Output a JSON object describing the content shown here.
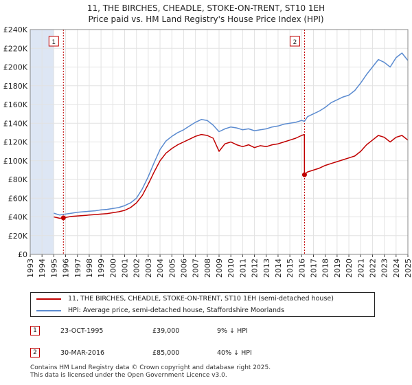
{
  "title_line1": "11, THE BIRCHES, CHEADLE, STOKE-ON-TRENT, ST10 1EH",
  "title_line2": "Price paid vs. HM Land Registry's House Price Index (HPI)",
  "colors": {
    "property": "#c00000",
    "hpi": "#5b8bd0",
    "shade": "#dde6f4",
    "marker": "#c00000"
  },
  "legend": {
    "property_label": "11, THE BIRCHES, CHEADLE, STOKE-ON-TRENT, ST10 1EH (semi-detached house)",
    "hpi_label": "HPI: Average price, semi-detached house, Staffordshire Moorlands"
  },
  "transactions": [
    {
      "num": "1",
      "date": "23-OCT-1995",
      "price": "£39,000",
      "hpi_diff": "9% ↓ HPI"
    },
    {
      "num": "2",
      "date": "30-MAR-2016",
      "price": "£85,000",
      "hpi_diff": "40% ↓ HPI"
    }
  ],
  "footer_line1": "Contains HM Land Registry data © Crown copyright and database right 2025.",
  "footer_line2": "This data is licensed under the Open Government Licence v3.0.",
  "chart_data": {
    "type": "line",
    "title": "11, THE BIRCHES, CHEADLE, STOKE-ON-TRENT, ST10 1EH — Price paid vs. HM Land Registry's House Price Index (HPI)",
    "xlim": [
      1993,
      2025
    ],
    "ylim": [
      0,
      240000
    ],
    "y_ticks": [
      0,
      20000,
      40000,
      60000,
      80000,
      100000,
      120000,
      140000,
      160000,
      180000,
      200000,
      220000,
      240000
    ],
    "y_tick_labels": [
      "£0",
      "£20K",
      "£40K",
      "£60K",
      "£80K",
      "£100K",
      "£120K",
      "£140K",
      "£160K",
      "£180K",
      "£200K",
      "£220K",
      "£240K"
    ],
    "x_ticks": [
      1993,
      1994,
      1995,
      1996,
      1997,
      1998,
      1999,
      2000,
      2001,
      2002,
      2003,
      2004,
      2005,
      2006,
      2007,
      2008,
      2009,
      2010,
      2011,
      2012,
      2013,
      2014,
      2015,
      2016,
      2017,
      2018,
      2019,
      2020,
      2021,
      2022,
      2023,
      2024,
      2025
    ],
    "shaded_regions": [
      [
        1993,
        1995.0
      ],
      [
        2025.0,
        2025.0
      ]
    ],
    "vlines": [
      {
        "x": 1995.81,
        "label": "1"
      },
      {
        "x": 2016.24,
        "label": "2"
      }
    ],
    "series": [
      {
        "name": "HPI: Average price, semi-detached house, Staffordshire Moorlands",
        "x": [
          1995.0,
          1995.5,
          1995.81,
          1996.0,
          1996.5,
          1997.0,
          1997.5,
          1998.0,
          1998.5,
          1999.0,
          1999.5,
          2000.0,
          2000.5,
          2001.0,
          2001.5,
          2002.0,
          2002.5,
          2003.0,
          2003.5,
          2004.0,
          2004.5,
          2005.0,
          2005.5,
          2006.0,
          2006.5,
          2007.0,
          2007.5,
          2008.0,
          2008.5,
          2009.0,
          2009.5,
          2010.0,
          2010.5,
          2011.0,
          2011.5,
          2012.0,
          2012.5,
          2013.0,
          2013.5,
          2014.0,
          2014.5,
          2015.0,
          2015.5,
          2016.0,
          2016.24,
          2016.5,
          2017.0,
          2017.5,
          2018.0,
          2018.5,
          2019.0,
          2019.5,
          2020.0,
          2020.5,
          2021.0,
          2021.5,
          2022.0,
          2022.5,
          2023.0,
          2023.5,
          2024.0,
          2024.5,
          2025.0
        ],
        "values": [
          44000,
          42000,
          42800,
          43000,
          44000,
          45000,
          45500,
          46000,
          46500,
          47500,
          48000,
          49000,
          50000,
          52000,
          55000,
          60000,
          70000,
          83000,
          98000,
          112000,
          121000,
          126000,
          130000,
          133000,
          137000,
          141000,
          144000,
          143000,
          138000,
          131000,
          134000,
          136000,
          135000,
          133000,
          134000,
          132000,
          133000,
          134000,
          136000,
          137000,
          139000,
          140000,
          141000,
          143000,
          142000,
          147000,
          150000,
          153000,
          157000,
          162000,
          165000,
          168000,
          170000,
          175000,
          183000,
          192000,
          200000,
          208000,
          205000,
          200000,
          210000,
          215000,
          207000
        ]
      },
      {
        "name": "11, THE BIRCHES, CHEADLE, STOKE-ON-TRENT, ST10 1EH (semi-detached house)",
        "x": [
          1995.0,
          1995.5,
          1995.81,
          1996.0,
          1996.5,
          1997.0,
          1997.5,
          1998.0,
          1998.5,
          1999.0,
          1999.5,
          2000.0,
          2000.5,
          2001.0,
          2001.5,
          2002.0,
          2002.5,
          2003.0,
          2003.5,
          2004.0,
          2004.5,
          2005.0,
          2005.5,
          2006.0,
          2006.5,
          2007.0,
          2007.5,
          2008.0,
          2008.5,
          2009.0,
          2009.5,
          2010.0,
          2010.5,
          2011.0,
          2011.5,
          2012.0,
          2012.5,
          2013.0,
          2013.5,
          2014.0,
          2014.5,
          2015.0,
          2015.5,
          2016.0,
          2016.23,
          2016.24,
          2016.5,
          2017.0,
          2017.5,
          2018.0,
          2018.5,
          2019.0,
          2019.5,
          2020.0,
          2020.5,
          2021.0,
          2021.5,
          2022.0,
          2022.5,
          2023.0,
          2023.5,
          2024.0,
          2024.5,
          2025.0
        ],
        "values": [
          40000,
          38500,
          39000,
          39500,
          40500,
          41000,
          41500,
          42000,
          42500,
          43000,
          43500,
          44500,
          45500,
          47000,
          50000,
          55000,
          63000,
          75000,
          88000,
          100000,
          108000,
          113000,
          117000,
          120000,
          123000,
          126000,
          128000,
          127000,
          124000,
          110000,
          118000,
          120000,
          117000,
          115000,
          117000,
          114000,
          116000,
          115000,
          117000,
          118000,
          120000,
          122000,
          124000,
          127000,
          128000,
          85000,
          88000,
          90000,
          92000,
          95000,
          97000,
          99000,
          101000,
          103000,
          105000,
          110000,
          117000,
          122000,
          127000,
          125000,
          120000,
          125000,
          127000,
          122000
        ]
      }
    ],
    "points": [
      {
        "x": 1995.81,
        "y": 39000,
        "label": "1"
      },
      {
        "x": 2016.24,
        "y": 85000,
        "label": "2"
      }
    ]
  }
}
